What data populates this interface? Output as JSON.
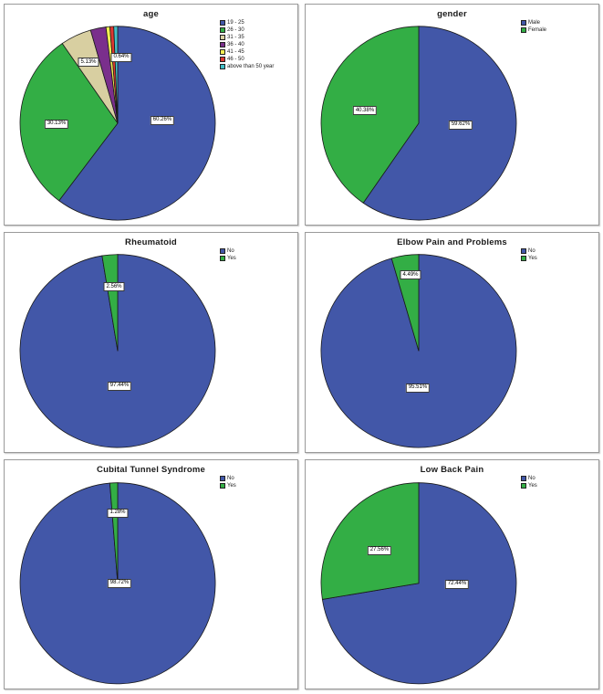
{
  "panel_border_color": "#9a9a9a",
  "chart_data": [
    {
      "type": "pie",
      "title": "age",
      "legend_position": "top-right",
      "slices": [
        {
          "label": "19 - 25",
          "value": 60.26,
          "color": "#4257A8",
          "data_label": "60.26%",
          "label_offset": [
            49,
            -3
          ]
        },
        {
          "label": "26 - 30",
          "value": 30.13,
          "color": "#33AE45",
          "data_label": "30.13%",
          "label_offset": [
            -67,
            1
          ]
        },
        {
          "label": "31 - 35",
          "value": 5.13,
          "color": "#D8CFA1",
          "data_label": "5.13%",
          "label_offset": [
            -32,
            -67
          ]
        },
        {
          "label": "36 - 40",
          "value": 2.56,
          "color": "#7A2F8C",
          "data_label": null,
          "label_offset": null
        },
        {
          "label": "41 - 45",
          "value": 0.64,
          "color": "#F4EE53",
          "data_label": "0.64%",
          "label_offset": [
            4,
            -73
          ]
        },
        {
          "label": "46 - 50",
          "value": 0.64,
          "color": "#DE3831",
          "data_label": null,
          "label_offset": null
        },
        {
          "label": "above than 50 year",
          "value": 0.64,
          "color": "#43BFC7",
          "data_label": null,
          "label_offset": null
        }
      ]
    },
    {
      "type": "pie",
      "title": "gender",
      "legend_position": "top-right",
      "slices": [
        {
          "label": "Male",
          "value": 59.62,
          "color": "#4257A8",
          "data_label": "59.62%",
          "label_offset": [
            46,
            2
          ]
        },
        {
          "label": "Female",
          "value": 40.38,
          "color": "#33AE45",
          "data_label": "40.38%",
          "label_offset": [
            -59,
            -14
          ]
        }
      ]
    },
    {
      "type": "pie",
      "title": "Rheumatoid",
      "legend_position": "top-right",
      "slices": [
        {
          "label": "No",
          "value": 97.44,
          "color": "#4257A8",
          "data_label": "97.44%",
          "label_offset": [
            2,
            39
          ]
        },
        {
          "label": "Yes",
          "value": 2.56,
          "color": "#33AE45",
          "data_label": "2.56%",
          "label_offset": [
            -4,
            -71
          ]
        }
      ]
    },
    {
      "type": "pie",
      "title": "Elbow Pain and Problems",
      "legend_position": "top-right",
      "slices": [
        {
          "label": "No",
          "value": 95.51,
          "color": "#4257A8",
          "data_label": "95.51%",
          "label_offset": [
            -1,
            41
          ]
        },
        {
          "label": "Yes",
          "value": 4.49,
          "color": "#33AE45",
          "data_label": "4.49%",
          "label_offset": [
            -9,
            -84
          ]
        }
      ]
    },
    {
      "type": "pie",
      "title": "Cubital Tunnel Syndrome",
      "legend_position": "top-right",
      "slices": [
        {
          "label": "No",
          "value": 98.72,
          "color": "#4257A8",
          "data_label": "98.72%",
          "label_offset": [
            2,
            0
          ]
        },
        {
          "label": "Yes",
          "value": 1.28,
          "color": "#33AE45",
          "data_label": "1.28%",
          "label_offset": [
            0,
            -75
          ]
        }
      ]
    },
    {
      "type": "pie",
      "title": "Low Back Pain",
      "legend_position": "top-right",
      "slices": [
        {
          "label": "No",
          "value": 72.44,
          "color": "#4257A8",
          "data_label": "72.44%",
          "label_offset": [
            42,
            1
          ]
        },
        {
          "label": "Yes",
          "value": 27.56,
          "color": "#33AE45",
          "data_label": "27.56%",
          "label_offset": [
            -43,
            -35
          ]
        }
      ]
    }
  ]
}
